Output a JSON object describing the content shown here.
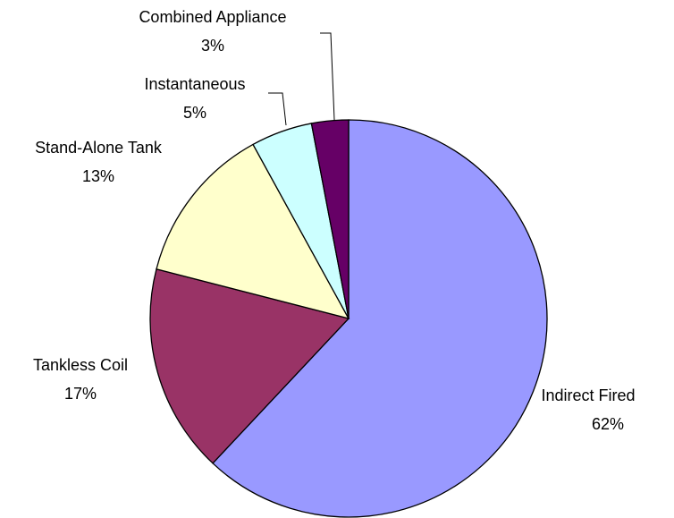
{
  "chart_data": {
    "type": "pie",
    "categories": [
      "Indirect Fired",
      "Tankless Coil",
      "Stand-Alone Tank",
      "Instantaneous",
      "Combined Appliance"
    ],
    "values": [
      62,
      17,
      13,
      5,
      3
    ],
    "value_labels": [
      "62%",
      "17%",
      "13%",
      "5%",
      "3%"
    ],
    "colors": [
      "#9999ff",
      "#993366",
      "#ffffcc",
      "#ccffff",
      "#660066"
    ]
  }
}
